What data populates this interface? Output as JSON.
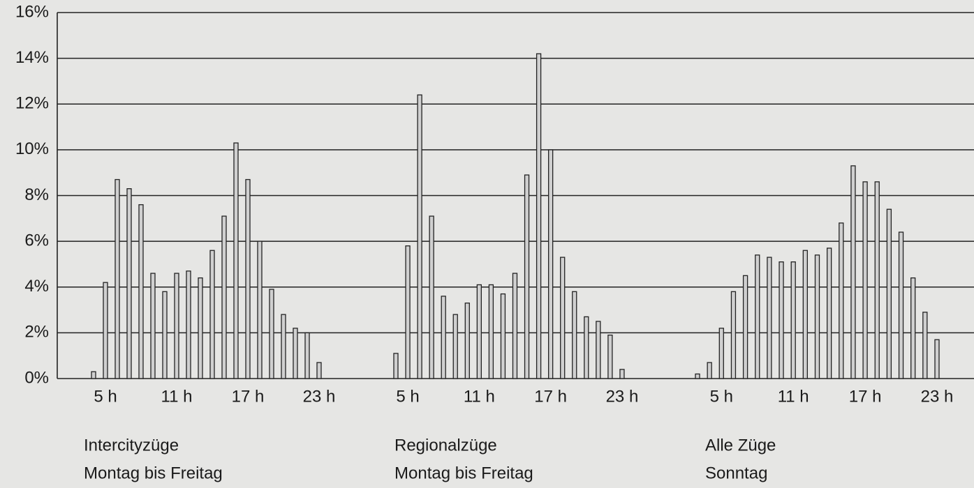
{
  "chart_data": [
    {
      "type": "bar",
      "caption": [
        "Intercityzüge",
        "Montag bis Freitag"
      ],
      "categories": [
        null,
        "5 h",
        null,
        null,
        null,
        null,
        null,
        "11 h",
        null,
        null,
        null,
        null,
        null,
        "17 h",
        null,
        null,
        null,
        null,
        null,
        "23 h"
      ],
      "values": [
        0.3,
        4.2,
        8.7,
        8.3,
        7.6,
        4.6,
        3.8,
        4.6,
        4.7,
        4.4,
        5.6,
        7.1,
        10.3,
        8.7,
        6.0,
        3.9,
        2.8,
        2.2,
        2.0,
        0.7
      ],
      "color": "#d0d0d0",
      "grid": true,
      "ylim": [
        0,
        16
      ],
      "yticks": [
        {
          "value": 0,
          "label": "0%"
        },
        {
          "value": 2,
          "label": "2%"
        },
        {
          "value": 4,
          "label": "4%"
        },
        {
          "value": 6,
          "label": "6%"
        },
        {
          "value": 8,
          "label": "8%"
        },
        {
          "value": 10,
          "label": "10%"
        },
        {
          "value": 12,
          "label": "12%"
        },
        {
          "value": 14,
          "label": "14%"
        },
        {
          "value": 16,
          "label": "16%"
        }
      ]
    },
    {
      "type": "bar",
      "caption": [
        "Regionalzüge",
        "Montag bis Freitag"
      ],
      "categories": [
        null,
        "5 h",
        null,
        null,
        null,
        null,
        null,
        "11 h",
        null,
        null,
        null,
        null,
        null,
        "17 h",
        null,
        null,
        null,
        null,
        null,
        "23 h"
      ],
      "values": [
        1.1,
        5.8,
        12.4,
        7.1,
        3.6,
        2.8,
        3.3,
        4.1,
        4.1,
        3.7,
        4.6,
        8.9,
        14.2,
        10.0,
        5.3,
        3.8,
        2.7,
        2.5,
        1.9,
        0.4
      ],
      "color": "#d0d0d0",
      "ylim": [
        0,
        16
      ]
    },
    {
      "type": "bar",
      "caption": [
        "Alle Züge",
        "Sonntag"
      ],
      "categories": [
        null,
        null,
        "5 h",
        null,
        null,
        null,
        null,
        null,
        "11 h",
        null,
        null,
        null,
        null,
        null,
        "17 h",
        null,
        null,
        null,
        null,
        null,
        "23 h"
      ],
      "values": [
        0.2,
        0.7,
        2.2,
        3.8,
        4.5,
        5.4,
        5.3,
        5.1,
        5.1,
        5.6,
        5.4,
        5.7,
        6.8,
        9.3,
        8.6,
        8.6,
        7.4,
        6.4,
        4.4,
        2.9,
        1.7
      ],
      "color": "#d0d0d0",
      "ylim": [
        0,
        16
      ]
    }
  ]
}
